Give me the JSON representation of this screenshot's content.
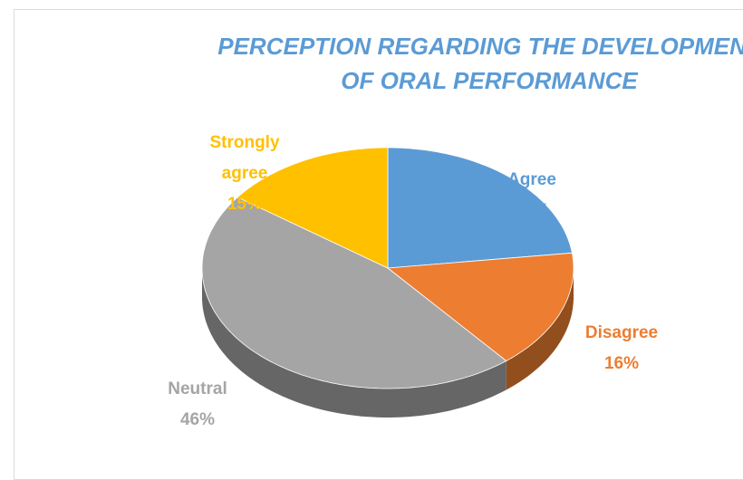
{
  "chart_data": {
    "type": "pie3d",
    "title": "PERCEPTION REGARDING THE DEVELOPMENT OF ORAL PERFORMANCE",
    "categories": [
      "Agree",
      "Disagree",
      "Neutral",
      "Strongly agree"
    ],
    "values": [
      23,
      16,
      46,
      15
    ],
    "value_labels": [
      "23%",
      "16%",
      "46%",
      "15%"
    ],
    "colors": [
      "#5b9bd5",
      "#ed7d31",
      "#a5a5a5",
      "#ffc000"
    ]
  }
}
